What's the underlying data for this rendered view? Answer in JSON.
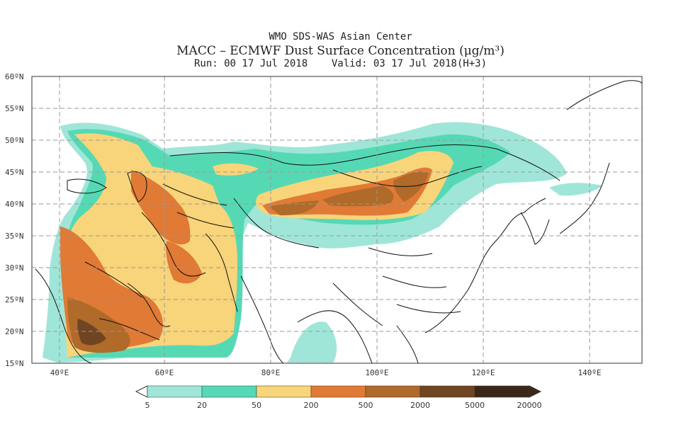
{
  "header": {
    "center": "WMO SDS-WAS Asian Center",
    "product": "MACC – ECMWF Dust Surface Concentration (μg/m³)",
    "run": "Run: 00 17 Jul 2018",
    "valid": "Valid: 03 17 Jul 2018(H+3)"
  },
  "axes": {
    "lat_labels": [
      "15ºN",
      "20ºN",
      "25ºN",
      "30ºN",
      "35ºN",
      "40ºN",
      "45ºN",
      "50ºN",
      "55ºN",
      "60ºN"
    ],
    "lon_labels": [
      "40ºE",
      "60ºE",
      "80ºE",
      "100ºE",
      "120ºE",
      "140ºE"
    ]
  },
  "colorbar": {
    "labels": [
      "5",
      "20",
      "50",
      "200",
      "500",
      "2000",
      "5000",
      "20000"
    ],
    "colors": [
      "#9fe6d8",
      "#55d9b4",
      "#f8d47a",
      "#e07a35",
      "#b06a2a",
      "#6f4522",
      "#3b2718"
    ]
  }
}
